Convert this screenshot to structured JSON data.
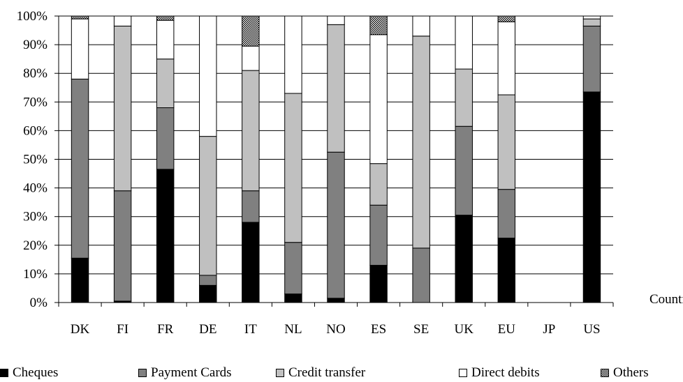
{
  "chart_data": {
    "type": "bar",
    "stacked": true,
    "title": "",
    "xlabel": "Country",
    "ylabel": "",
    "ylim": [
      0,
      100
    ],
    "yticks": [
      "0%",
      "10%",
      "20%",
      "30%",
      "40%",
      "50%",
      "60%",
      "70%",
      "80%",
      "90%",
      "100%"
    ],
    "grid": true,
    "legend_position": "bottom",
    "categories": [
      "DK",
      "FI",
      "FR",
      "DE",
      "IT",
      "NL",
      "NO",
      "ES",
      "SE",
      "UK",
      "EU",
      "JP",
      "US"
    ],
    "series": [
      {
        "name": "Cheques",
        "color": "#000000",
        "pattern": "solid",
        "values": [
          15.5,
          0.5,
          46.5,
          6,
          28,
          3,
          1.5,
          13,
          0,
          30.5,
          22.5,
          0,
          73.5
        ]
      },
      {
        "name": "Payment Cards",
        "color": "#808080",
        "pattern": "solid",
        "values": [
          62.5,
          38.5,
          21.5,
          3.5,
          11,
          18,
          51,
          21,
          19,
          31,
          17,
          0,
          23
        ]
      },
      {
        "name": "Credit transfer",
        "color": "#c0c0c0",
        "pattern": "solid",
        "values": [
          0,
          57.5,
          17,
          48.5,
          42,
          52,
          44.5,
          14.5,
          74,
          20,
          33,
          0,
          2.5
        ]
      },
      {
        "name": "Direct debits",
        "color": "#ffffff",
        "pattern": "solid",
        "values": [
          21,
          3.5,
          13.5,
          42,
          8.5,
          27,
          3,
          45,
          7,
          18.5,
          25.5,
          0,
          1
        ]
      },
      {
        "name": "Others",
        "color": "#ffffff",
        "pattern": "dotted",
        "values": [
          1,
          0,
          1.5,
          0,
          10.5,
          0,
          0,
          6.5,
          0,
          0,
          2,
          0,
          0
        ]
      }
    ]
  }
}
